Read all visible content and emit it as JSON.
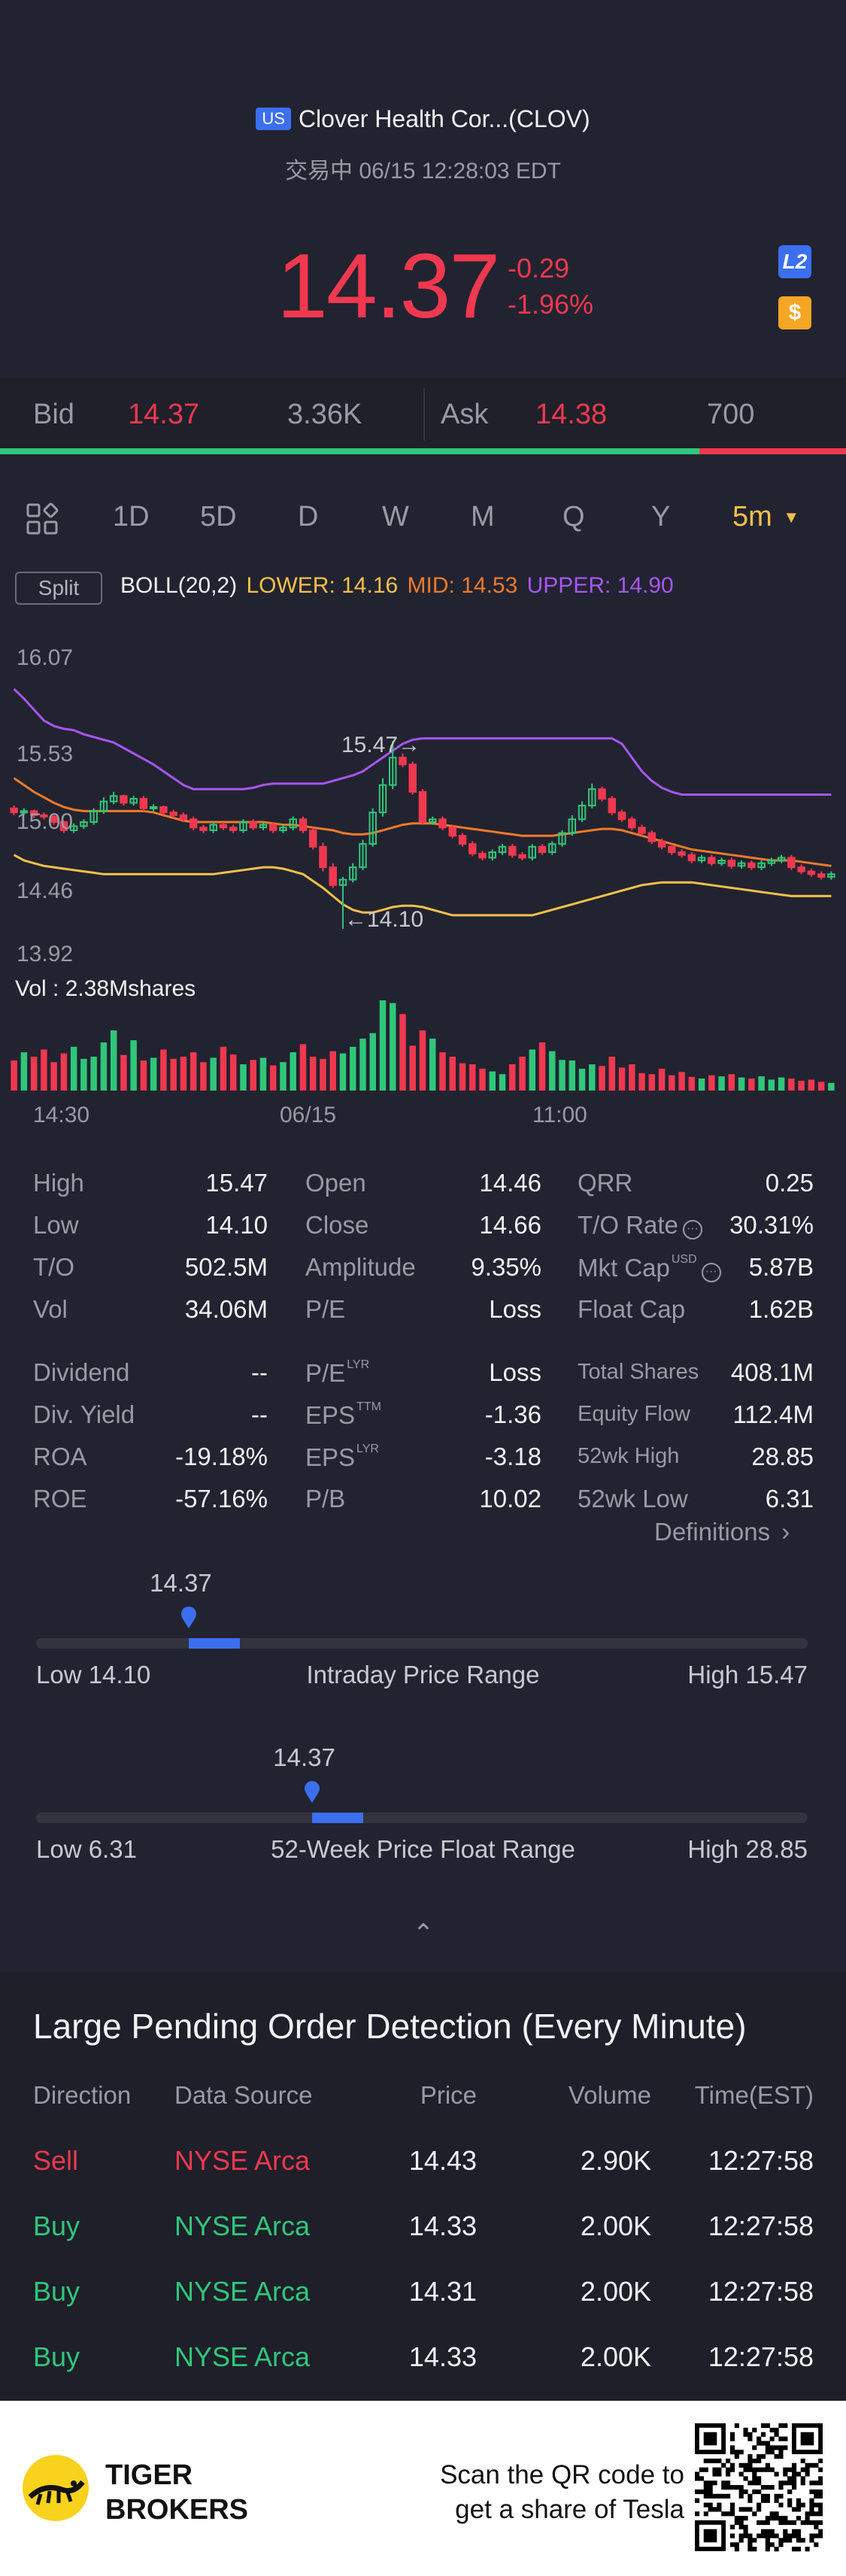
{
  "header": {
    "market_badge": "US",
    "stock_name": "Clover Health Cor...(CLOV)",
    "status": "交易中 06/15 12:28:03 EDT",
    "price": "14.37",
    "change": "-0.29",
    "change_pct": "-1.96%",
    "l2_label": "L2",
    "dollar_label": "$"
  },
  "bid_ask": {
    "bid_label": "Bid",
    "bid_price": "14.37",
    "bid_size": "3.36K",
    "ask_label": "Ask",
    "ask_price": "14.38",
    "ask_size": "700"
  },
  "tabs": {
    "items": [
      "1D",
      "5D",
      "D",
      "W",
      "M",
      "Q",
      "Y"
    ],
    "active": "5m"
  },
  "indicator": {
    "split": "Split",
    "name": "BOLL(20,2)",
    "lower": "LOWER: 14.16",
    "mid": "MID: 14.53",
    "upper": "UPPER: 14.90",
    "colors": {
      "lower": "#f5c14a",
      "mid": "#f07a2a",
      "upper": "#a855f7"
    }
  },
  "chart": {
    "y_labels": [
      "16.07",
      "15.53",
      "15.00",
      "14.46",
      "13.92"
    ],
    "high_marker": "15.47→",
    "low_marker": "←14.10",
    "vol_label": "Vol  : 2.38Mshares",
    "x_labels": [
      "14:30",
      "06/15",
      "11:00"
    ]
  },
  "chart_data": {
    "type": "candlestick",
    "ylim": [
      13.92,
      16.07
    ],
    "open": [
      14.98,
      14.95,
      14.96,
      14.93,
      14.92,
      14.88,
      14.82,
      14.85,
      14.88,
      14.96,
      15.03,
      15.07,
      15.02,
      15.05,
      14.98,
      14.99,
      14.95,
      14.93,
      14.9,
      14.84,
      14.82,
      14.86,
      14.84,
      14.82,
      14.88,
      14.84,
      14.86,
      14.82,
      14.84,
      14.9,
      14.82,
      14.7,
      14.55,
      14.42,
      14.46,
      14.55,
      14.72,
      14.95,
      15.15,
      15.35,
      15.3,
      15.1,
      14.88,
      14.9,
      14.84,
      14.78,
      14.72,
      14.65,
      14.62,
      14.66,
      14.7,
      14.64,
      14.62,
      14.7,
      14.66,
      14.72,
      14.8,
      14.9,
      15.0,
      15.12,
      15.05,
      14.95,
      14.9,
      14.84,
      14.8,
      14.74,
      14.7,
      14.66,
      14.64,
      14.6,
      14.62,
      14.58,
      14.6,
      14.56,
      14.58,
      14.55,
      14.58,
      14.6,
      14.62,
      14.55,
      14.52,
      14.5,
      14.48
    ],
    "close": [
      14.95,
      14.96,
      14.93,
      14.92,
      14.88,
      14.82,
      14.85,
      14.88,
      14.96,
      15.03,
      15.07,
      15.02,
      15.05,
      14.98,
      14.99,
      14.95,
      14.93,
      14.9,
      14.84,
      14.82,
      14.86,
      14.84,
      14.82,
      14.88,
      14.84,
      14.86,
      14.82,
      14.84,
      14.9,
      14.82,
      14.7,
      14.55,
      14.42,
      14.46,
      14.55,
      14.72,
      14.95,
      15.15,
      15.35,
      15.3,
      15.1,
      14.88,
      14.9,
      14.84,
      14.78,
      14.72,
      14.65,
      14.62,
      14.66,
      14.7,
      14.64,
      14.62,
      14.7,
      14.66,
      14.72,
      14.8,
      14.9,
      15.0,
      15.12,
      15.05,
      14.95,
      14.9,
      14.84,
      14.8,
      14.74,
      14.7,
      14.66,
      14.64,
      14.6,
      14.62,
      14.58,
      14.6,
      14.56,
      14.58,
      14.55,
      14.58,
      14.6,
      14.62,
      14.55,
      14.52,
      14.5,
      14.48,
      14.5
    ],
    "high": [
      15.0,
      14.98,
      14.97,
      14.95,
      14.93,
      14.89,
      14.87,
      14.9,
      14.98,
      15.06,
      15.1,
      15.08,
      15.07,
      15.07,
      15.01,
      15.0,
      14.97,
      14.95,
      14.92,
      14.86,
      14.88,
      14.88,
      14.86,
      14.9,
      14.9,
      14.88,
      14.88,
      14.86,
      14.92,
      14.92,
      14.84,
      14.73,
      14.58,
      14.48,
      14.58,
      14.75,
      14.98,
      15.2,
      15.47,
      15.38,
      15.32,
      15.12,
      14.92,
      14.92,
      14.86,
      14.8,
      14.74,
      14.67,
      14.68,
      14.72,
      14.72,
      14.66,
      14.72,
      14.72,
      14.74,
      14.82,
      14.93,
      15.03,
      15.16,
      15.14,
      15.07,
      14.97,
      14.92,
      14.86,
      14.82,
      14.76,
      14.72,
      14.68,
      14.66,
      14.64,
      14.64,
      14.62,
      14.62,
      14.6,
      14.6,
      14.6,
      14.62,
      14.64,
      14.64,
      14.57,
      14.54,
      14.52,
      14.52
    ],
    "low": [
      14.93,
      14.93,
      14.91,
      14.9,
      14.86,
      14.8,
      14.8,
      14.83,
      14.86,
      14.94,
      15.01,
      15.0,
      15.0,
      14.96,
      14.96,
      14.93,
      14.91,
      14.88,
      14.82,
      14.8,
      14.8,
      14.82,
      14.8,
      14.8,
      14.82,
      14.82,
      14.8,
      14.8,
      14.82,
      14.8,
      14.68,
      14.52,
      14.4,
      14.1,
      14.44,
      14.53,
      14.7,
      14.92,
      15.12,
      15.28,
      15.08,
      14.86,
      14.86,
      14.82,
      14.76,
      14.7,
      14.63,
      14.6,
      14.6,
      14.64,
      14.62,
      14.6,
      14.6,
      14.64,
      14.64,
      14.7,
      14.78,
      14.88,
      14.98,
      15.03,
      14.93,
      14.88,
      14.82,
      14.78,
      14.72,
      14.68,
      14.64,
      14.62,
      14.58,
      14.58,
      14.56,
      14.56,
      14.54,
      14.54,
      14.53,
      14.53,
      14.56,
      14.58,
      14.53,
      14.5,
      14.48,
      14.46,
      14.46
    ],
    "upper_band": [
      15.85,
      15.78,
      15.7,
      15.62,
      15.58,
      15.56,
      15.55,
      15.52,
      15.5,
      15.48,
      15.46,
      15.42,
      15.38,
      15.34,
      15.3,
      15.25,
      15.2,
      15.15,
      15.12,
      15.12,
      15.12,
      15.12,
      15.12,
      15.12,
      15.13,
      15.15,
      15.16,
      15.16,
      15.16,
      15.16,
      15.16,
      15.16,
      15.18,
      15.2,
      15.22,
      15.25,
      15.3,
      15.35,
      15.4,
      15.45,
      15.48,
      15.49,
      15.49,
      15.49,
      15.49,
      15.49,
      15.49,
      15.49,
      15.49,
      15.49,
      15.49,
      15.49,
      15.49,
      15.49,
      15.49,
      15.49,
      15.49,
      15.49,
      15.49,
      15.49,
      15.49,
      15.45,
      15.35,
      15.25,
      15.18,
      15.13,
      15.1,
      15.08,
      15.08,
      15.08,
      15.08,
      15.08,
      15.08,
      15.08,
      15.08,
      15.08,
      15.08,
      15.08,
      15.08,
      15.08,
      15.08,
      15.08,
      15.08
    ],
    "mid_band": [
      15.2,
      15.15,
      15.1,
      15.06,
      15.02,
      14.99,
      14.97,
      14.96,
      14.96,
      14.96,
      14.96,
      14.96,
      14.96,
      14.96,
      14.95,
      14.93,
      14.91,
      14.89,
      14.88,
      14.88,
      14.88,
      14.88,
      14.88,
      14.88,
      14.88,
      14.88,
      14.87,
      14.86,
      14.86,
      14.85,
      14.84,
      14.83,
      14.82,
      14.8,
      14.79,
      14.79,
      14.8,
      14.82,
      14.84,
      14.86,
      14.87,
      14.87,
      14.87,
      14.86,
      14.85,
      14.84,
      14.83,
      14.82,
      14.81,
      14.8,
      14.79,
      14.78,
      14.78,
      14.78,
      14.78,
      14.79,
      14.8,
      14.81,
      14.82,
      14.83,
      14.83,
      14.82,
      14.8,
      14.78,
      14.76,
      14.74,
      14.72,
      14.7,
      14.68,
      14.67,
      14.66,
      14.65,
      14.64,
      14.63,
      14.62,
      14.61,
      14.6,
      14.6,
      14.6,
      14.59,
      14.58,
      14.57,
      14.56
    ],
    "lower_band": [
      14.64,
      14.6,
      14.58,
      14.56,
      14.55,
      14.54,
      14.53,
      14.52,
      14.51,
      14.5,
      14.5,
      14.5,
      14.5,
      14.5,
      14.5,
      14.5,
      14.5,
      14.5,
      14.5,
      14.5,
      14.5,
      14.51,
      14.52,
      14.53,
      14.54,
      14.55,
      14.55,
      14.54,
      14.52,
      14.5,
      14.45,
      14.4,
      14.34,
      14.28,
      14.24,
      14.22,
      14.22,
      14.24,
      14.26,
      14.27,
      14.27,
      14.26,
      14.24,
      14.22,
      14.2,
      14.2,
      14.2,
      14.2,
      14.2,
      14.2,
      14.2,
      14.2,
      14.2,
      14.22,
      14.24,
      14.26,
      14.28,
      14.3,
      14.32,
      14.34,
      14.36,
      14.38,
      14.4,
      14.42,
      14.43,
      14.44,
      14.44,
      14.44,
      14.44,
      14.43,
      14.42,
      14.41,
      14.4,
      14.39,
      14.38,
      14.37,
      14.36,
      14.35,
      14.34,
      14.34,
      14.34,
      14.34,
      14.34
    ],
    "volume": [
      55,
      70,
      62,
      75,
      52,
      68,
      80,
      58,
      62,
      88,
      110,
      65,
      92,
      55,
      60,
      75,
      58,
      62,
      70,
      52,
      60,
      80,
      66,
      48,
      56,
      60,
      46,
      52,
      70,
      85,
      62,
      58,
      72,
      68,
      80,
      95,
      105,
      165,
      160,
      140,
      82,
      110,
      95,
      70,
      62,
      50,
      48,
      40,
      35,
      30,
      48,
      62,
      75,
      88,
      72,
      56,
      55,
      40,
      48,
      45,
      62,
      42,
      48,
      32,
      30,
      40,
      28,
      34,
      25,
      22,
      28,
      26,
      30,
      24,
      22,
      26,
      20,
      24,
      22,
      18,
      20,
      16,
      14
    ]
  },
  "stats": {
    "grid1": [
      [
        {
          "l": "High",
          "v": "15.47"
        },
        {
          "l": "Open",
          "v": "14.46"
        },
        {
          "l": "QRR",
          "v": "0.25"
        }
      ],
      [
        {
          "l": "Low",
          "v": "14.10"
        },
        {
          "l": "Close",
          "v": "14.66"
        },
        {
          "l": "T/O Rate",
          "v": "30.31%"
        }
      ],
      [
        {
          "l": "T/O",
          "v": "502.5M"
        },
        {
          "l": "Amplitude",
          "v": "9.35%"
        },
        {
          "l": "Mkt Cap",
          "v": "5.87B"
        }
      ],
      [
        {
          "l": "Vol",
          "v": "34.06M"
        },
        {
          "l": "P/E",
          "v": "Loss"
        },
        {
          "l": "Float Cap",
          "v": "1.62B"
        }
      ]
    ],
    "grid2": [
      [
        {
          "l": "Dividend",
          "v": "--"
        },
        {
          "l": "P/E",
          "v": "Loss"
        },
        {
          "l": "Total Shares",
          "v": "408.1M"
        }
      ],
      [
        {
          "l": "Div. Yield",
          "v": "--"
        },
        {
          "l": "EPS",
          "v": "-1.36"
        },
        {
          "l": "Equity Flow",
          "v": "112.4M"
        }
      ],
      [
        {
          "l": "ROA",
          "v": "-19.18%"
        },
        {
          "l": "EPS",
          "v": "-3.18"
        },
        {
          "l": "52wk High",
          "v": "28.85"
        }
      ],
      [
        {
          "l": "ROE",
          "v": "-57.16%"
        },
        {
          "l": "P/B",
          "v": "10.02"
        },
        {
          "l": "52wk Low",
          "v": "6.31"
        }
      ]
    ],
    "sup_usd": "USD",
    "sup_lyr": "LYR",
    "sup_ttm": "TTM",
    "definitions": "Definitions"
  },
  "ranges": {
    "intraday": {
      "current": "14.37",
      "low": "Low 14.10",
      "title": "Intraday Price Range",
      "high": "High 15.47",
      "position": 0.198
    },
    "week52": {
      "current": "14.37",
      "low": "Low 6.31",
      "title": "52-Week Price Float Range",
      "high": "High 28.85",
      "position": 0.358
    }
  },
  "orders": {
    "title": "Large Pending Order Detection (Every Minute)",
    "headers": [
      "Direction",
      "Data Source",
      "Price",
      "Volume",
      "Time(EST)"
    ],
    "rows": [
      {
        "dir": "Sell",
        "src": "NYSE Arca",
        "price": "14.43",
        "vol": "2.90K",
        "time": "12:27:58",
        "side": "sell"
      },
      {
        "dir": "Buy",
        "src": "NYSE Arca",
        "price": "14.33",
        "vol": "2.00K",
        "time": "12:27:58",
        "side": "buy"
      },
      {
        "dir": "Buy",
        "src": "NYSE Arca",
        "price": "14.31",
        "vol": "2.00K",
        "time": "12:27:58",
        "side": "buy"
      },
      {
        "dir": "Buy",
        "src": "NYSE Arca",
        "price": "14.33",
        "vol": "2.00K",
        "time": "12:27:58",
        "side": "buy"
      }
    ]
  },
  "footer": {
    "brand_line1": "TIGER",
    "brand_line2": "BROKERS",
    "scan_line1": "Scan the QR code to",
    "scan_line2": "get a share of Tesla"
  }
}
